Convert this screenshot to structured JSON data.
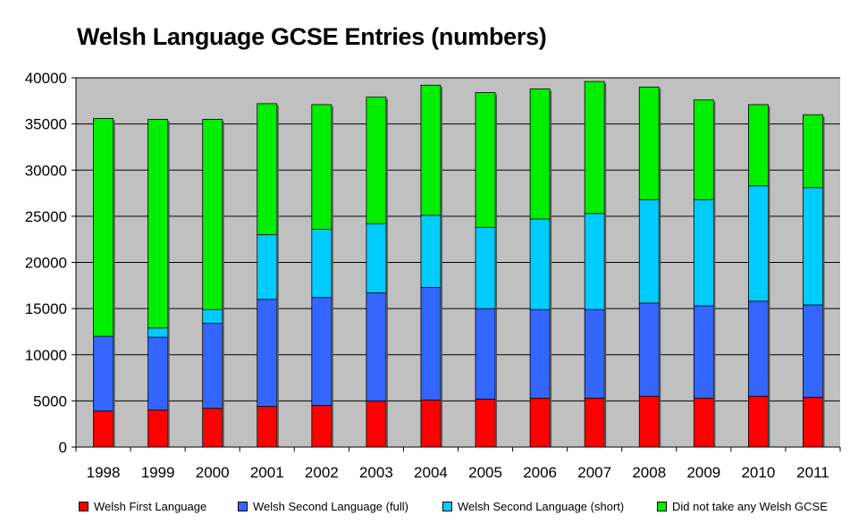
{
  "chart_data": {
    "type": "bar",
    "stacked": true,
    "title": "Welsh Language GCSE Entries (numbers)",
    "xlabel": "",
    "ylabel": "",
    "ylim": [
      0,
      40000
    ],
    "y_ticks": [
      0,
      5000,
      10000,
      15000,
      20000,
      25000,
      30000,
      35000,
      40000
    ],
    "grid": true,
    "legend_position": "bottom",
    "categories": [
      "1998",
      "1999",
      "2000",
      "2001",
      "2002",
      "2003",
      "2004",
      "2005",
      "2006",
      "2007",
      "2008",
      "2009",
      "2010",
      "2011"
    ],
    "series": [
      {
        "name": "Welsh First Language",
        "color": "#ff0000",
        "values": [
          3900,
          4000,
          4200,
          4400,
          4500,
          5000,
          5100,
          5200,
          5300,
          5300,
          5500,
          5300,
          5500,
          5400
        ]
      },
      {
        "name": "Welsh Second Language (full)",
        "color": "#3366ff",
        "values": [
          8100,
          7900,
          9200,
          11600,
          11700,
          11700,
          12200,
          9800,
          9600,
          9600,
          10100,
          10000,
          10300,
          10000
        ]
      },
      {
        "name": "Welsh Second Language (short)",
        "color": "#00ccff",
        "values": [
          0,
          1000,
          1500,
          7000,
          7400,
          7500,
          7800,
          8800,
          9800,
          10400,
          11200,
          11500,
          12500,
          12700
        ]
      },
      {
        "name": "Did not take any Welsh GCSE",
        "color": "#00ee00",
        "values": [
          23600,
          22600,
          20600,
          14200,
          13500,
          13700,
          14100,
          14600,
          14100,
          14300,
          12200,
          10800,
          8800,
          7900
        ]
      }
    ],
    "colors": {
      "plot_background": "#c0c0c0",
      "gridline": "#000000"
    }
  }
}
